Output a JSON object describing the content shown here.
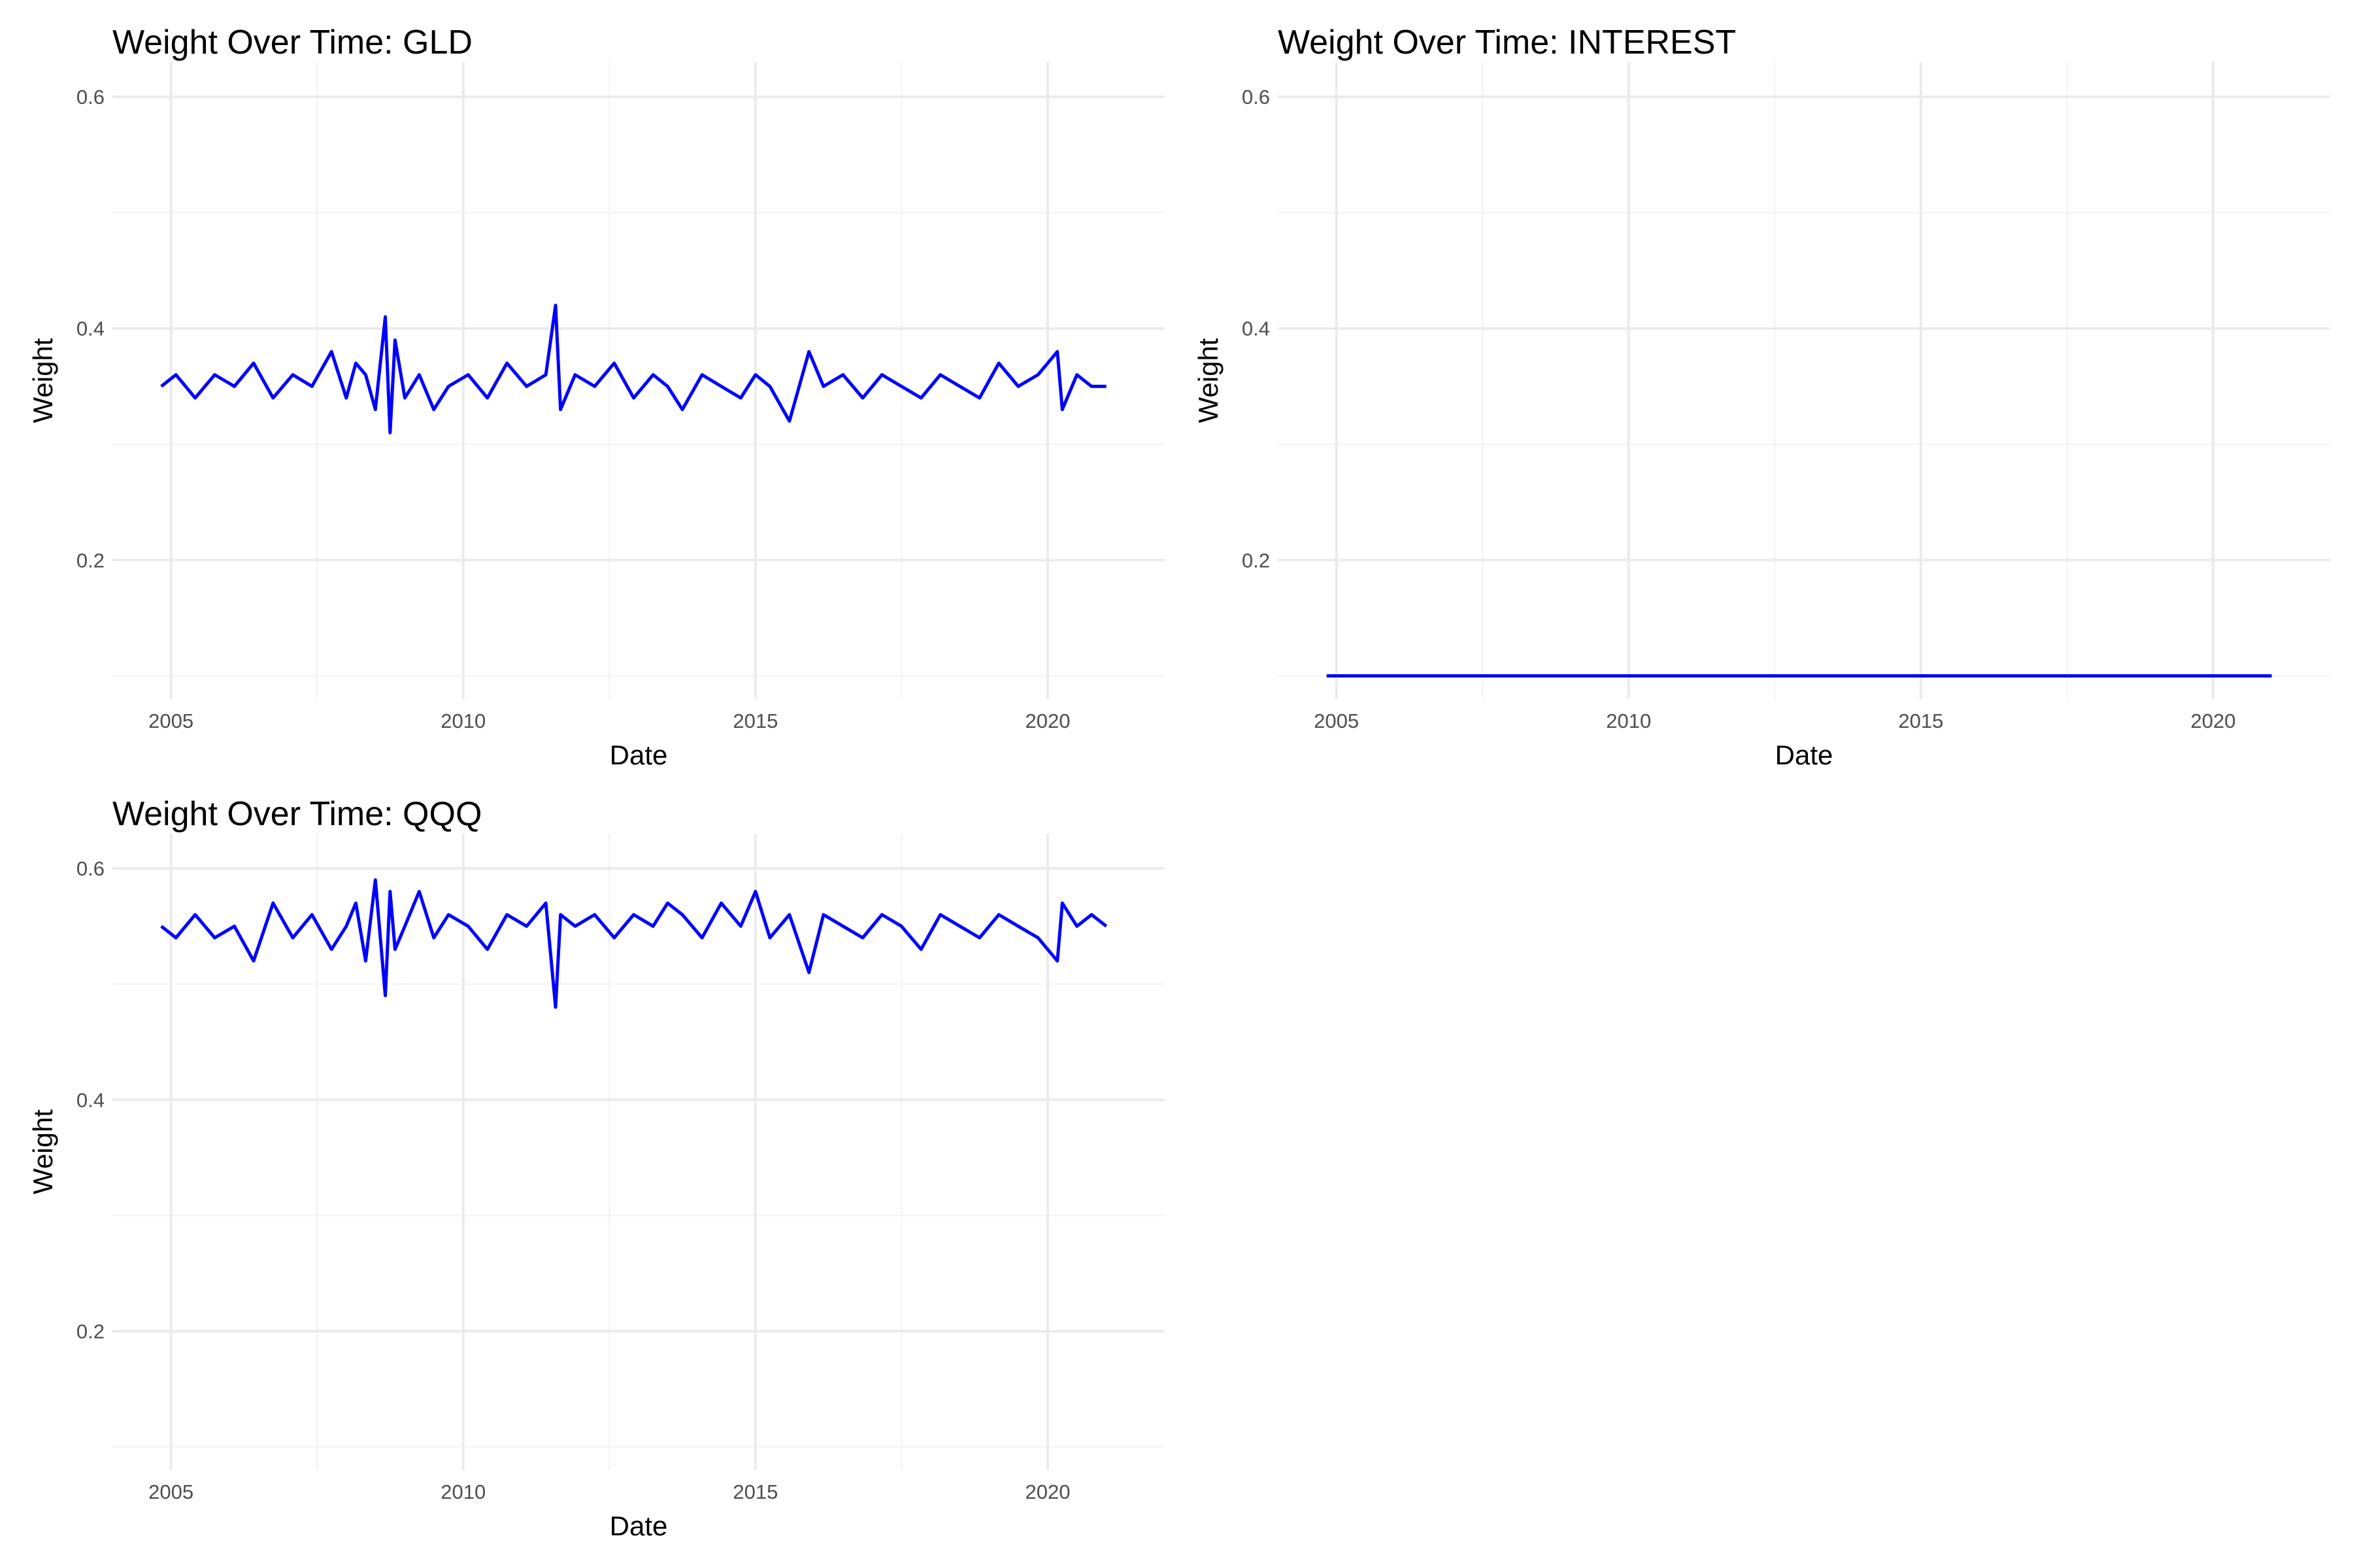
{
  "chart_data": [
    {
      "type": "line",
      "title": "Weight Over Time: GLD",
      "xlabel": "Date",
      "ylabel": "Weight",
      "xlim": [
        "2004-01-01",
        "2022-01-01"
      ],
      "ylim": [
        0.08,
        0.63
      ],
      "x_ticks": [
        "2005",
        "2010",
        "2015",
        "2020"
      ],
      "y_ticks": [
        "0.2",
        "0.4",
        "0.6"
      ],
      "grid": true,
      "line_color": "#0000ff",
      "series": [
        {
          "x": [
            "2004-11-01",
            "2005-02-01",
            "2005-06-01",
            "2005-10-01",
            "2006-02-01",
            "2006-06-01",
            "2006-10-01",
            "2007-02-01",
            "2007-06-01",
            "2007-10-01",
            "2008-01-01",
            "2008-03-01",
            "2008-05-01",
            "2008-07-01",
            "2008-09-01",
            "2008-10-01",
            "2008-11-01",
            "2009-01-01",
            "2009-04-01",
            "2009-07-01",
            "2009-10-01",
            "2010-02-01",
            "2010-06-01",
            "2010-10-01",
            "2011-02-01",
            "2011-06-01",
            "2011-08-01",
            "2011-09-01",
            "2011-12-01",
            "2012-04-01",
            "2012-08-01",
            "2012-12-01",
            "2013-04-01",
            "2013-07-01",
            "2013-10-01",
            "2014-02-01",
            "2014-06-01",
            "2014-10-01",
            "2015-01-01",
            "2015-04-01",
            "2015-08-01",
            "2015-12-01",
            "2016-03-01",
            "2016-07-01",
            "2016-11-01",
            "2017-03-01",
            "2017-07-01",
            "2017-11-01",
            "2018-03-01",
            "2018-07-01",
            "2018-11-01",
            "2019-03-01",
            "2019-07-01",
            "2019-11-01",
            "2020-03-01",
            "2020-04-01",
            "2020-07-01",
            "2020-10-01",
            "2021-01-01"
          ],
          "values": [
            0.35,
            0.36,
            0.34,
            0.36,
            0.35,
            0.37,
            0.34,
            0.36,
            0.35,
            0.38,
            0.34,
            0.37,
            0.36,
            0.33,
            0.41,
            0.31,
            0.39,
            0.34,
            0.36,
            0.33,
            0.35,
            0.36,
            0.34,
            0.37,
            0.35,
            0.36,
            0.42,
            0.33,
            0.36,
            0.35,
            0.37,
            0.34,
            0.36,
            0.35,
            0.33,
            0.36,
            0.35,
            0.34,
            0.36,
            0.35,
            0.32,
            0.38,
            0.35,
            0.36,
            0.34,
            0.36,
            0.35,
            0.34,
            0.36,
            0.35,
            0.34,
            0.37,
            0.35,
            0.36,
            0.38,
            0.33,
            0.36,
            0.35,
            0.35
          ]
        }
      ]
    },
    {
      "type": "line",
      "title": "Weight Over Time: INTEREST",
      "xlabel": "Date",
      "ylabel": "Weight",
      "xlim": [
        "2004-01-01",
        "2022-01-01"
      ],
      "ylim": [
        0.08,
        0.63
      ],
      "x_ticks": [
        "2005",
        "2010",
        "2015",
        "2020"
      ],
      "y_ticks": [
        "0.2",
        "0.4",
        "0.6"
      ],
      "grid": true,
      "line_color": "#0000ff",
      "series": [
        {
          "x": [
            "2004-11-01",
            "2021-01-01"
          ],
          "values": [
            0.1,
            0.1
          ]
        }
      ]
    },
    {
      "type": "line",
      "title": "Weight Over Time: QQQ",
      "xlabel": "Date",
      "ylabel": "Weight",
      "xlim": [
        "2004-01-01",
        "2022-01-01"
      ],
      "ylim": [
        0.08,
        0.63
      ],
      "x_ticks": [
        "2005",
        "2010",
        "2015",
        "2020"
      ],
      "y_ticks": [
        "0.2",
        "0.4",
        "0.6"
      ],
      "grid": true,
      "line_color": "#0000ff",
      "series": [
        {
          "x": [
            "2004-11-01",
            "2005-02-01",
            "2005-06-01",
            "2005-10-01",
            "2006-02-01",
            "2006-06-01",
            "2006-10-01",
            "2007-02-01",
            "2007-06-01",
            "2007-10-01",
            "2008-01-01",
            "2008-03-01",
            "2008-05-01",
            "2008-07-01",
            "2008-09-01",
            "2008-10-01",
            "2008-11-01",
            "2009-01-01",
            "2009-04-01",
            "2009-07-01",
            "2009-10-01",
            "2010-02-01",
            "2010-06-01",
            "2010-10-01",
            "2011-02-01",
            "2011-06-01",
            "2011-08-01",
            "2011-09-01",
            "2011-12-01",
            "2012-04-01",
            "2012-08-01",
            "2012-12-01",
            "2013-04-01",
            "2013-07-01",
            "2013-10-01",
            "2014-02-01",
            "2014-06-01",
            "2014-10-01",
            "2015-01-01",
            "2015-04-01",
            "2015-08-01",
            "2015-12-01",
            "2016-03-01",
            "2016-07-01",
            "2016-11-01",
            "2017-03-01",
            "2017-07-01",
            "2017-11-01",
            "2018-03-01",
            "2018-07-01",
            "2018-11-01",
            "2019-03-01",
            "2019-07-01",
            "2019-11-01",
            "2020-03-01",
            "2020-04-01",
            "2020-07-01",
            "2020-10-01",
            "2021-01-01"
          ],
          "values": [
            0.55,
            0.54,
            0.56,
            0.54,
            0.55,
            0.52,
            0.57,
            0.54,
            0.56,
            0.53,
            0.55,
            0.57,
            0.52,
            0.59,
            0.49,
            0.58,
            0.53,
            0.55,
            0.58,
            0.54,
            0.56,
            0.55,
            0.53,
            0.56,
            0.55,
            0.57,
            0.48,
            0.56,
            0.55,
            0.56,
            0.54,
            0.56,
            0.55,
            0.57,
            0.56,
            0.54,
            0.57,
            0.55,
            0.58,
            0.54,
            0.56,
            0.51,
            0.56,
            0.55,
            0.54,
            0.56,
            0.55,
            0.53,
            0.56,
            0.55,
            0.54,
            0.56,
            0.55,
            0.54,
            0.52,
            0.57,
            0.55,
            0.56,
            0.55
          ]
        }
      ]
    }
  ]
}
